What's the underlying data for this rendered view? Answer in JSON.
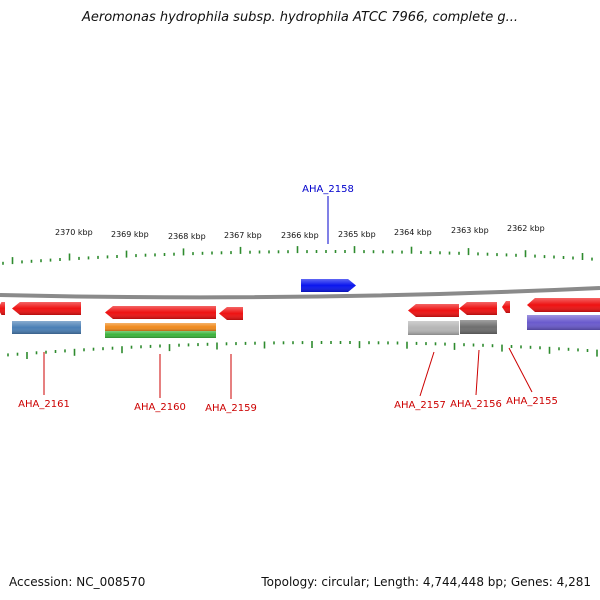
{
  "title": "Aeromonas hydrophila subsp. hydrophila ATCC 7966, complete g...",
  "footer": {
    "accession": "Accession: NC_008570",
    "summary": "Topology: circular; Length: 4,744,448 bp; Genes: 4,281"
  },
  "colors": {
    "backbone": "#8a8a8a",
    "tick": "#2e8b2e",
    "gene_label_minus": "#cc0000",
    "gene_label_plus": "#0000cc"
  },
  "scale_labels": [
    {
      "text": "2370 kbp"
    },
    {
      "text": "2369 kbp"
    },
    {
      "text": "2368 kbp"
    },
    {
      "text": "2367 kbp"
    },
    {
      "text": "2366 kbp"
    },
    {
      "text": "2365 kbp"
    },
    {
      "text": "2364 kbp"
    },
    {
      "text": "2363 kbp"
    },
    {
      "text": "2362 kbp"
    }
  ],
  "gene_labels": [
    {
      "name": "AHA_2158",
      "color": "#0000cc"
    },
    {
      "name": "AHA_2161",
      "color": "#cc0000"
    },
    {
      "name": "AHA_2160",
      "color": "#cc0000"
    },
    {
      "name": "AHA_2159",
      "color": "#cc0000"
    },
    {
      "name": "AHA_2157",
      "color": "#cc0000"
    },
    {
      "name": "AHA_2156",
      "color": "#cc0000"
    },
    {
      "name": "AHA_2155",
      "color": "#cc0000"
    }
  ],
  "features": [
    {
      "name": "gene-2162-partial",
      "strand": "-",
      "color": "#ee1111"
    },
    {
      "name": "AHA_2161-gene",
      "strand": "-",
      "color": "#ee1111"
    },
    {
      "name": "AHA_2161-cds",
      "strand": "-",
      "color": "#4a7fb5"
    },
    {
      "name": "AHA_2160-gene",
      "strand": "-",
      "color": "#ee1111"
    },
    {
      "name": "AHA_2160-cds-a",
      "strand": "-",
      "color": "#f08a1c"
    },
    {
      "name": "AHA_2160-cds-b",
      "strand": "-",
      "color": "#3cb33c"
    },
    {
      "name": "AHA_2159-gene",
      "strand": "-",
      "color": "#ee1111"
    },
    {
      "name": "AHA_2158-gene",
      "strand": "+",
      "color": "#0a16ee"
    },
    {
      "name": "AHA_2157-gene",
      "strand": "-",
      "color": "#ee1111"
    },
    {
      "name": "AHA_2157-cds",
      "strand": "-",
      "color": "#b5b5b5"
    },
    {
      "name": "AHA_2156-gene",
      "strand": "-",
      "color": "#ee1111"
    },
    {
      "name": "AHA_2156-cds",
      "strand": "-",
      "color": "#6e6e6e"
    },
    {
      "name": "AHA_2155-gene",
      "strand": "-",
      "color": "#ee1111"
    },
    {
      "name": "gene-2154-partial",
      "strand": "-",
      "color": "#ee1111"
    },
    {
      "name": "gene-2154-cds",
      "strand": "-",
      "color": "#6a5acd"
    }
  ]
}
